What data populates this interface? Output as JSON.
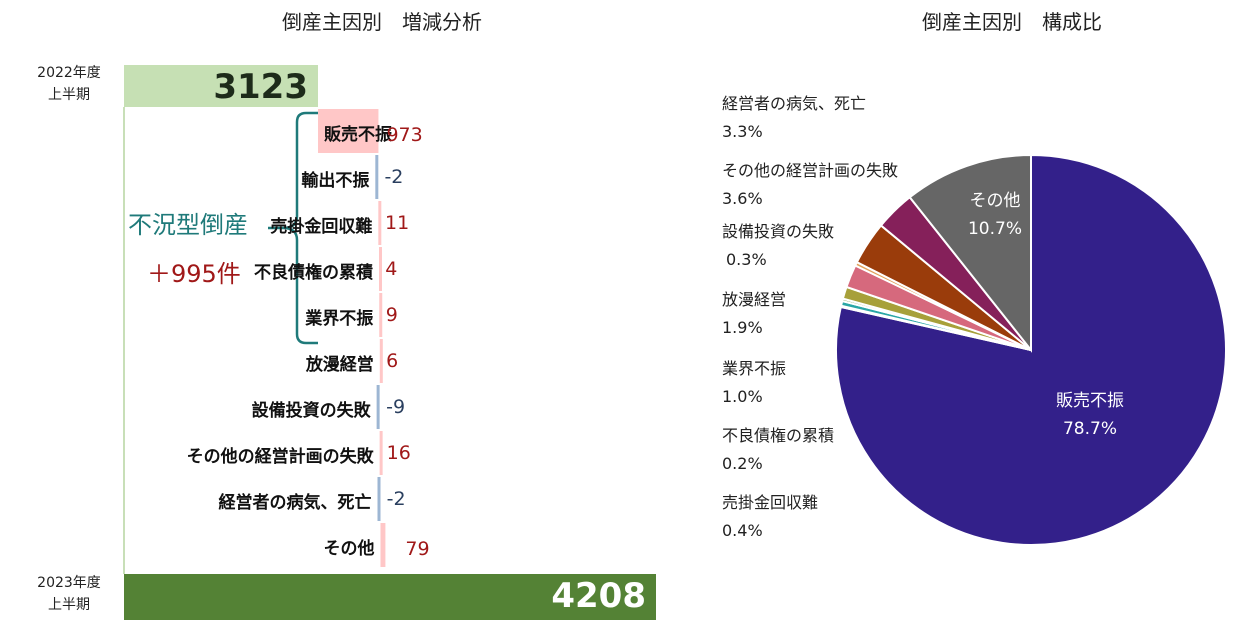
{
  "titles": {
    "left": "倒産主因別　増減分析",
    "right": "倒産主因別　構成比"
  },
  "periods": {
    "start_line1": "2022年度",
    "start_line2": "上半期",
    "end_line1": "2023年度",
    "end_line2": "上半期"
  },
  "bracket": {
    "label": "不況型倒産",
    "value": "＋995件"
  },
  "colors": {
    "start_total": "#c6e0b4",
    "end_total": "#548235",
    "increase": "#ffc7c7",
    "decrease": "#9db6d3",
    "bracket": "#1f7a7a",
    "positive_text": "#a01818",
    "negative_text": "#2a3f5f"
  },
  "chart_data": [
    {
      "type": "bar",
      "subtype": "waterfall",
      "title": "倒産主因別　増減分析",
      "start": {
        "label": "2022年度 上半期",
        "value": 3123,
        "display": "3123"
      },
      "end": {
        "label": "2023年度 上半期",
        "value": 4208,
        "display": "4208"
      },
      "categories": [
        "販売不振",
        "輸出不振",
        "売掛金回収難",
        "不良債権の累積",
        "業界不振",
        "放漫経営",
        "設備投資の失敗",
        "その他の経営計画の失敗",
        "経営者の病気、死亡",
        "その他"
      ],
      "values": [
        973,
        -2,
        11,
        4,
        9,
        6,
        -9,
        16,
        -2,
        79
      ],
      "labels": [
        "973",
        "-2",
        "11",
        "4",
        "9",
        "6",
        "-9",
        "16",
        "-2",
        "79"
      ]
    },
    {
      "type": "pie",
      "title": "倒産主因別　構成比",
      "slices": [
        {
          "name": "販売不振",
          "value": 78.7,
          "label": "78.7%",
          "color": "#33208a"
        },
        {
          "name": "輸出不振",
          "value": 0.1,
          "label": "",
          "color": "#3b6ea5"
        },
        {
          "name": "売掛金回収難",
          "value": 0.4,
          "label": "0.4%",
          "color": "#2aa6a6"
        },
        {
          "name": "不良債権の累積",
          "value": 0.2,
          "label": "0.2%",
          "color": "#6a8a3a"
        },
        {
          "name": "業界不振",
          "value": 1.0,
          "label": "1.0%",
          "color": "#a7a03a"
        },
        {
          "name": "放漫経営",
          "value": 1.9,
          "label": "1.9%",
          "color": "#d6697d"
        },
        {
          "name": "設備投資の失敗",
          "value": 0.3,
          "label": "0.3%",
          "color": "#e1a15a"
        },
        {
          "name": "その他の経営計画の失敗",
          "value": 3.6,
          "label": "3.6%",
          "color": "#9a3c0b"
        },
        {
          "name": "経営者の病気、死亡",
          "value": 3.3,
          "label": "3.3%",
          "color": "#85205a"
        },
        {
          "name": "その他",
          "value": 10.7,
          "label": "10.7%",
          "color": "#666666"
        }
      ],
      "start_angle_deg": 0,
      "direction": "clockwise"
    }
  ]
}
